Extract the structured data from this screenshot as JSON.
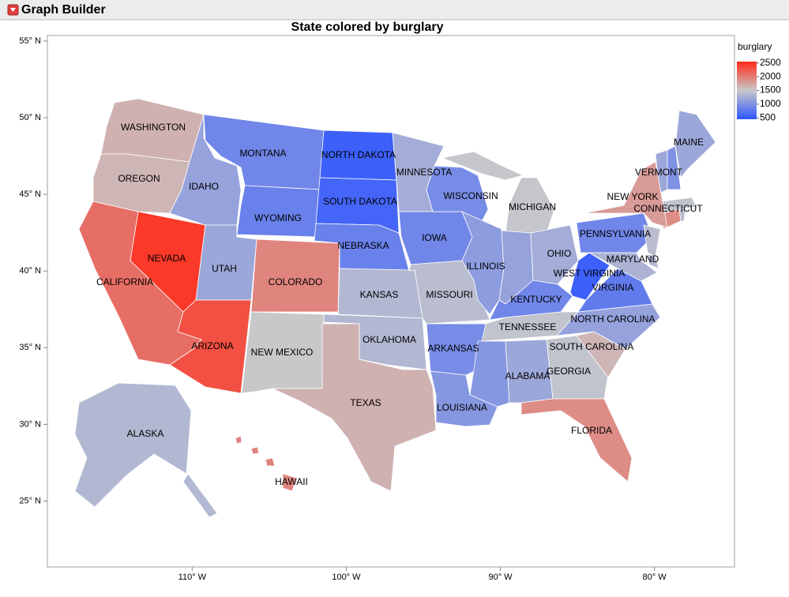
{
  "window_title": "Graph Builder",
  "chart_data": {
    "type": "choropleth",
    "title": "State colored by burglary",
    "legend_title": "burglary",
    "color_range": [
      450,
      2550
    ],
    "color_low": "#2e55ff",
    "color_mid": "#c8c8ca",
    "color_high": "#ff2a18",
    "legend_ticks": [
      2500,
      2000,
      1500,
      1000,
      500
    ],
    "xlim": [
      -119.4,
      -74.8
    ],
    "ylim": [
      20.7,
      55.36
    ],
    "xticks": [
      {
        "value": -110,
        "label": "110° W"
      },
      {
        "value": -100,
        "label": "100° W"
      },
      {
        "value": -90,
        "label": "90° W"
      },
      {
        "value": -80,
        "label": "80° W"
      }
    ],
    "yticks": [
      {
        "value": 25,
        "label": "25° N"
      },
      {
        "value": 30,
        "label": "30° N"
      },
      {
        "value": 35,
        "label": "35° N"
      },
      {
        "value": 40,
        "label": "40° N"
      },
      {
        "value": 45,
        "label": "45° N"
      },
      {
        "value": 50,
        "label": "50° N"
      },
      {
        "value": 55,
        "label": "55° N"
      }
    ],
    "regions": [
      {
        "name": "WASHINGTON",
        "value": 1650
      },
      {
        "name": "OREGON",
        "value": 1620
      },
      {
        "name": "CALIFORNIA",
        "value": 2100
      },
      {
        "name": "NEVADA",
        "value": 2450
      },
      {
        "name": "IDAHO",
        "value": 1150
      },
      {
        "name": "MONTANA",
        "value": 900
      },
      {
        "name": "WYOMING",
        "value": 850
      },
      {
        "name": "UTAH",
        "value": 1200
      },
      {
        "name": "ARIZONA",
        "value": 2300
      },
      {
        "name": "COLORADO",
        "value": 1950
      },
      {
        "name": "NEW MEXICO",
        "value": 1500
      },
      {
        "name": "NORTH DAKOTA",
        "value": 550
      },
      {
        "name": "SOUTH DAKOTA",
        "value": 600
      },
      {
        "name": "NEBRASKA",
        "value": 850
      },
      {
        "name": "KANSAS",
        "value": 1350
      },
      {
        "name": "OKLAHOMA",
        "value": 1350
      },
      {
        "name": "TEXAS",
        "value": 1650
      },
      {
        "name": "MINNESOTA",
        "value": 1250
      },
      {
        "name": "IOWA",
        "value": 900
      },
      {
        "name": "MISSOURI",
        "value": 1400
      },
      {
        "name": "ARKANSAS",
        "value": 950
      },
      {
        "name": "LOUISIANA",
        "value": 1050
      },
      {
        "name": "WISCONSIN",
        "value": 950
      },
      {
        "name": "ILLINOIS",
        "value": 1100
      },
      {
        "name": "MICHIGAN",
        "value": 1480
      },
      {
        "name": null,
        "value": 1150
      },
      {
        "name": "OHIO",
        "value": 1250
      },
      {
        "name": "KENTUCKY",
        "value": 900
      },
      {
        "name": "TENNESSEE",
        "value": 1450
      },
      {
        "name": null,
        "value": 1050
      },
      {
        "name": "ALABAMA",
        "value": 1200
      },
      {
        "name": "GEORGIA",
        "value": 1450
      },
      {
        "name": "FLORIDA",
        "value": 1900
      },
      {
        "name": "SOUTH CAROLINA",
        "value": 1620
      },
      {
        "name": "NORTH CAROLINA",
        "value": 1150
      },
      {
        "name": "VIRGINIA",
        "value": 800
      },
      {
        "name": "WEST VIRGINIA",
        "value": 550
      },
      {
        "name": "PENNSYLVANIA",
        "value": 900
      },
      {
        "name": "MARYLAND",
        "value": 1300
      },
      {
        "name": null,
        "value": 1400
      },
      {
        "name": null,
        "value": 1350
      },
      {
        "name": "CONNECTICUT",
        "value": 1900
      },
      {
        "name": null,
        "value": 1400
      },
      {
        "name": null,
        "value": 1450
      },
      {
        "name": "VERMONT",
        "value": 1200
      },
      {
        "name": null,
        "value": 1000
      },
      {
        "name": "MAINE",
        "value": 1200
      },
      {
        "name": "NEW YORK",
        "value": 1800
      },
      {
        "name": "ALASKA",
        "value": 1350
      },
      {
        "name": "HAWAII",
        "value": 1950
      }
    ]
  }
}
